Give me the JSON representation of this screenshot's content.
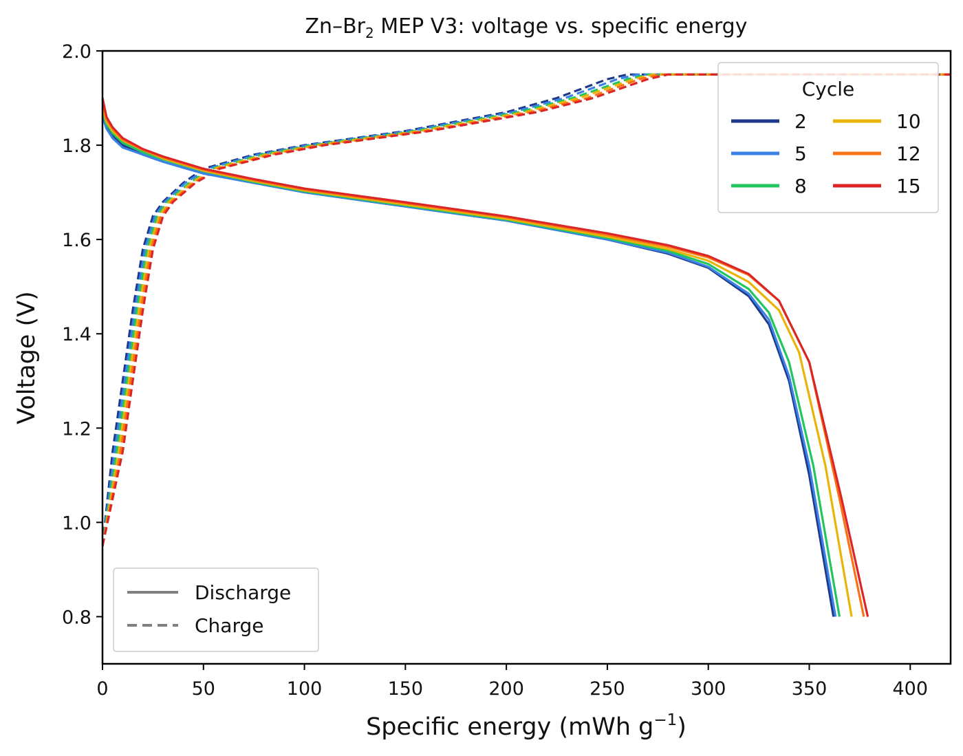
{
  "chart_data": {
    "type": "line",
    "title": "Zn–Br",
    "title_sub": "2",
    "title_rest": " MEP V3: voltage vs. specific energy",
    "xlabel": "Specific energy (mWh g",
    "xlabel_sup": "−1",
    "xlabel_end": ")",
    "ylabel": "Voltage (V)",
    "xlim": [
      0,
      420
    ],
    "ylim": [
      0.7,
      2.0
    ],
    "xticks": [
      0,
      50,
      100,
      150,
      200,
      250,
      300,
      350,
      400
    ],
    "yticks": [
      0.8,
      1.0,
      1.2,
      1.4,
      1.6,
      1.8,
      2.0
    ],
    "xtick_labels": [
      "0",
      "50",
      "100",
      "150",
      "200",
      "250",
      "300",
      "350",
      "400"
    ],
    "ytick_labels": [
      "0.8",
      "1.0",
      "1.2",
      "1.4",
      "1.6",
      "1.8",
      "2.0"
    ],
    "grid": false,
    "legend_cycle": {
      "title": "Cycle",
      "placement": "top-right"
    },
    "legend_style": {
      "placement": "bottom-left",
      "entries": [
        {
          "label": "Discharge",
          "style": "solid"
        },
        {
          "label": "Charge",
          "style": "dashed"
        }
      ]
    },
    "series": [
      {
        "name": "2",
        "color": "#1f3a8a",
        "discharge": {
          "x": [
            0,
            2,
            5,
            10,
            20,
            30,
            50,
            75,
            100,
            150,
            200,
            250,
            280,
            300,
            320,
            330,
            340,
            350,
            362
          ],
          "y": [
            1.87,
            1.84,
            1.82,
            1.8,
            1.78,
            1.765,
            1.74,
            1.72,
            1.7,
            1.67,
            1.64,
            1.6,
            1.57,
            1.54,
            1.48,
            1.42,
            1.3,
            1.1,
            0.8
          ]
        },
        "charge": {
          "x": [
            0,
            5,
            10,
            15,
            20,
            25,
            30,
            40,
            50,
            75,
            100,
            150,
            200,
            225,
            250,
            260,
            270,
            420
          ],
          "y": [
            0.95,
            1.15,
            1.3,
            1.45,
            1.58,
            1.65,
            1.68,
            1.72,
            1.75,
            1.78,
            1.8,
            1.83,
            1.87,
            1.9,
            1.94,
            1.95,
            1.95,
            1.95
          ]
        }
      },
      {
        "name": "5",
        "color": "#3b82e6",
        "discharge": {
          "x": [
            0,
            2,
            5,
            10,
            20,
            30,
            50,
            75,
            100,
            150,
            200,
            250,
            280,
            300,
            320,
            330,
            340,
            350,
            363
          ],
          "y": [
            1.86,
            1.835,
            1.815,
            1.795,
            1.78,
            1.765,
            1.74,
            1.72,
            1.7,
            1.67,
            1.64,
            1.6,
            1.572,
            1.542,
            1.485,
            1.43,
            1.31,
            1.12,
            0.8
          ]
        },
        "charge": {
          "x": [
            0,
            6,
            11,
            16,
            21,
            26,
            31,
            41,
            52,
            77,
            102,
            152,
            203,
            229,
            255,
            265,
            275,
            420
          ],
          "y": [
            0.95,
            1.15,
            1.3,
            1.45,
            1.58,
            1.65,
            1.68,
            1.72,
            1.75,
            1.78,
            1.8,
            1.83,
            1.87,
            1.9,
            1.94,
            1.95,
            1.95,
            1.95
          ]
        }
      },
      {
        "name": "8",
        "color": "#22c55e",
        "discharge": {
          "x": [
            0,
            2,
            5,
            10,
            20,
            30,
            50,
            75,
            100,
            150,
            200,
            250,
            280,
            300,
            320,
            330,
            340,
            352,
            365
          ],
          "y": [
            1.87,
            1.845,
            1.825,
            1.805,
            1.785,
            1.77,
            1.745,
            1.722,
            1.702,
            1.672,
            1.642,
            1.603,
            1.576,
            1.548,
            1.495,
            1.445,
            1.34,
            1.12,
            0.8
          ]
        },
        "charge": {
          "x": [
            0,
            7,
            12,
            17,
            22,
            27,
            32,
            43,
            54,
            79,
            104,
            155,
            206,
            233,
            260,
            270,
            280,
            420
          ],
          "y": [
            0.95,
            1.15,
            1.3,
            1.45,
            1.58,
            1.65,
            1.68,
            1.72,
            1.75,
            1.78,
            1.8,
            1.83,
            1.87,
            1.9,
            1.94,
            1.95,
            1.95,
            1.95
          ]
        }
      },
      {
        "name": "10",
        "color": "#eab308",
        "discharge": {
          "x": [
            0,
            2,
            5,
            10,
            20,
            30,
            50,
            75,
            100,
            150,
            200,
            250,
            280,
            300,
            320,
            335,
            345,
            358,
            371
          ],
          "y": [
            1.88,
            1.85,
            1.83,
            1.81,
            1.79,
            1.772,
            1.746,
            1.724,
            1.704,
            1.674,
            1.644,
            1.606,
            1.58,
            1.555,
            1.51,
            1.45,
            1.36,
            1.12,
            0.8
          ]
        },
        "charge": {
          "x": [
            0,
            8,
            13,
            18,
            23,
            28,
            33,
            44,
            55,
            81,
            106,
            157,
            209,
            236,
            263,
            273,
            283,
            420
          ],
          "y": [
            0.95,
            1.15,
            1.3,
            1.45,
            1.58,
            1.65,
            1.68,
            1.72,
            1.75,
            1.78,
            1.8,
            1.83,
            1.87,
            1.9,
            1.94,
            1.95,
            1.95,
            1.95
          ]
        }
      },
      {
        "name": "12",
        "color": "#f97316",
        "discharge": {
          "x": [
            0,
            2,
            5,
            10,
            20,
            30,
            50,
            75,
            100,
            150,
            200,
            250,
            280,
            300,
            320,
            335,
            350,
            365,
            377
          ],
          "y": [
            1.89,
            1.855,
            1.835,
            1.812,
            1.79,
            1.774,
            1.748,
            1.726,
            1.706,
            1.677,
            1.647,
            1.61,
            1.585,
            1.562,
            1.525,
            1.47,
            1.34,
            1.05,
            0.8
          ]
        },
        "charge": {
          "x": [
            0,
            9,
            14,
            19,
            24,
            29,
            34,
            45,
            57,
            83,
            108,
            160,
            212,
            240,
            266,
            276,
            286,
            420
          ],
          "y": [
            0.95,
            1.15,
            1.3,
            1.45,
            1.58,
            1.65,
            1.68,
            1.72,
            1.75,
            1.78,
            1.8,
            1.83,
            1.87,
            1.9,
            1.94,
            1.95,
            1.95,
            1.95
          ]
        }
      },
      {
        "name": "15",
        "color": "#dc2626",
        "discharge": {
          "x": [
            0,
            2,
            5,
            10,
            20,
            30,
            50,
            75,
            100,
            150,
            200,
            250,
            280,
            300,
            320,
            335,
            350,
            366,
            379
          ],
          "y": [
            1.9,
            1.86,
            1.838,
            1.815,
            1.792,
            1.776,
            1.75,
            1.728,
            1.708,
            1.679,
            1.649,
            1.613,
            1.588,
            1.565,
            1.527,
            1.47,
            1.34,
            1.05,
            0.8
          ]
        },
        "charge": {
          "x": [
            0,
            10,
            15,
            20,
            25,
            30,
            35,
            46,
            58,
            85,
            110,
            162,
            215,
            243,
            270,
            280,
            290,
            420
          ],
          "y": [
            0.95,
            1.15,
            1.3,
            1.45,
            1.58,
            1.65,
            1.68,
            1.72,
            1.75,
            1.78,
            1.8,
            1.83,
            1.87,
            1.9,
            1.94,
            1.95,
            1.95,
            1.95
          ]
        }
      }
    ]
  }
}
